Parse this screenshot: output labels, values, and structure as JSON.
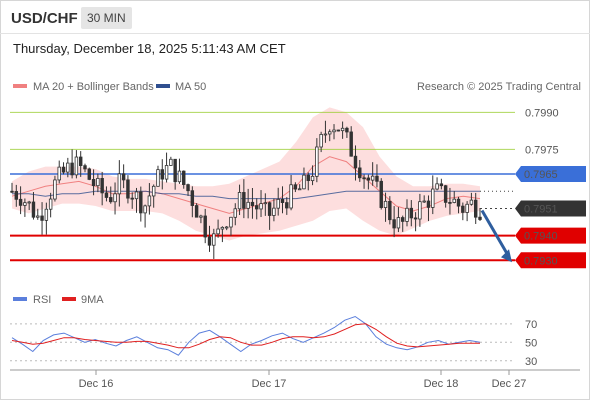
{
  "header": {
    "symbol": "USD/CHF",
    "timeframe": "30 MIN",
    "timestamp": "Thursday, December 18, 2025 5:11:43 AM CET"
  },
  "legend": {
    "ma20_label": "MA 20 + Bollinger Bands",
    "ma50_label": "MA 50",
    "rsi_label": "RSI",
    "ma9_label": "9MA",
    "copyright": "Research © 2025 Trading Central"
  },
  "colors": {
    "support": "#e00000",
    "resistance": "#9acd32",
    "pivot": "#3a6fd8",
    "candle": "#333333",
    "bollinger_fill": "#fddede",
    "ma20": "#f08080",
    "ma50": "#2f4f8f",
    "rsi": "#5b7fdc",
    "ma9": "#e02020",
    "arrow": "#2f5e9e"
  },
  "chart_data": [
    {
      "type": "candlestick",
      "title": "USD/CHF 30 MIN",
      "ylim": [
        0.7922,
        0.7995
      ],
      "x_ticks": [
        "Dec 16",
        "Dec 17",
        "Dec 18",
        "Dec 27"
      ],
      "levels": [
        {
          "value": 0.799,
          "label": "0.7990",
          "kind": "resistance"
        },
        {
          "value": 0.7975,
          "label": "0.7975",
          "kind": "resistance"
        },
        {
          "value": 0.7965,
          "label": "0.7965",
          "kind": "pivot"
        },
        {
          "value": 0.7951,
          "label": "0.7951",
          "kind": "last_price"
        },
        {
          "value": 0.794,
          "label": "0.7940",
          "kind": "support"
        },
        {
          "value": 0.793,
          "label": "0.7930",
          "kind": "support"
        }
      ],
      "close_path": [
        0.7958,
        0.7956,
        0.7952,
        0.7947,
        0.7955,
        0.7962,
        0.7966,
        0.7969,
        0.7967,
        0.7962,
        0.7958,
        0.7955,
        0.7961,
        0.796,
        0.7956,
        0.7952,
        0.796,
        0.7966,
        0.7968,
        0.7963,
        0.7958,
        0.795,
        0.7942,
        0.7938,
        0.7946,
        0.795,
        0.7955,
        0.7953,
        0.7951,
        0.7948,
        0.7952,
        0.7955,
        0.7957,
        0.796,
        0.7966,
        0.7978,
        0.7986,
        0.7984,
        0.7978,
        0.797,
        0.7964,
        0.796,
        0.7954,
        0.7947,
        0.7944,
        0.7948,
        0.7951,
        0.7954,
        0.7958,
        0.7956,
        0.7954,
        0.7951,
        0.7953,
        0.7951
      ],
      "ma50_path": [
        0.7957,
        0.7957,
        0.7956,
        0.7957,
        0.7957,
        0.7958,
        0.7958,
        0.7958,
        0.7958,
        0.7957,
        0.7957,
        0.7956,
        0.7956,
        0.7955,
        0.7955,
        0.7955,
        0.7955,
        0.7955,
        0.7956,
        0.7957,
        0.7958,
        0.7958,
        0.7958,
        0.7958,
        0.7958,
        0.7958,
        0.7958,
        0.7958,
        0.7958
      ],
      "ma20_path": [
        0.7956,
        0.7958,
        0.796,
        0.7961,
        0.7962,
        0.796,
        0.7957,
        0.7957,
        0.7958,
        0.7957,
        0.7955,
        0.7953,
        0.7951,
        0.7949,
        0.7951,
        0.7953,
        0.7955,
        0.796,
        0.7968,
        0.7972,
        0.797,
        0.7964,
        0.7958,
        0.7952,
        0.795,
        0.7952,
        0.7955,
        0.7956,
        0.7955
      ],
      "bb_upper": [
        0.7962,
        0.7966,
        0.7968,
        0.7968,
        0.7968,
        0.7967,
        0.7964,
        0.7963,
        0.7963,
        0.7962,
        0.7961,
        0.796,
        0.796,
        0.7961,
        0.7964,
        0.7967,
        0.797,
        0.7978,
        0.7988,
        0.7992,
        0.799,
        0.7984,
        0.7972,
        0.7964,
        0.796,
        0.796,
        0.7961,
        0.7961,
        0.796
      ],
      "bb_lower": [
        0.7951,
        0.7949,
        0.7951,
        0.7953,
        0.7953,
        0.7952,
        0.795,
        0.795,
        0.795,
        0.7949,
        0.7946,
        0.7942,
        0.794,
        0.7938,
        0.794,
        0.7941,
        0.7942,
        0.7944,
        0.7946,
        0.795,
        0.7951,
        0.7946,
        0.7942,
        0.794,
        0.7943,
        0.7946,
        0.7948,
        0.7949,
        0.795
      ],
      "forecast": {
        "from": 0.7951,
        "to": 0.793,
        "direction": "down"
      }
    },
    {
      "type": "line",
      "title": "RSI",
      "ylim": [
        20,
        85
      ],
      "y_ticks": [
        70,
        50,
        30
      ],
      "series": [
        {
          "name": "RSI",
          "values": [
            55,
            48,
            40,
            52,
            58,
            60,
            55,
            50,
            53,
            49,
            46,
            52,
            56,
            50,
            44,
            42,
            36,
            50,
            60,
            63,
            56,
            48,
            40,
            48,
            52,
            57,
            60,
            54,
            50,
            55,
            60,
            66,
            74,
            78,
            70,
            56,
            48,
            44,
            42,
            45,
            50,
            52,
            48,
            50,
            52,
            50
          ]
        },
        {
          "name": "9MA",
          "values": [
            52,
            50,
            48,
            49,
            52,
            55,
            55,
            53,
            52,
            51,
            50,
            50,
            51,
            51,
            49,
            47,
            44,
            44,
            48,
            53,
            56,
            55,
            50,
            47,
            47,
            50,
            54,
            56,
            56,
            55,
            56,
            59,
            64,
            69,
            70,
            64,
            56,
            49,
            46,
            45,
            46,
            47,
            48,
            49,
            49,
            49
          ]
        }
      ]
    }
  ]
}
